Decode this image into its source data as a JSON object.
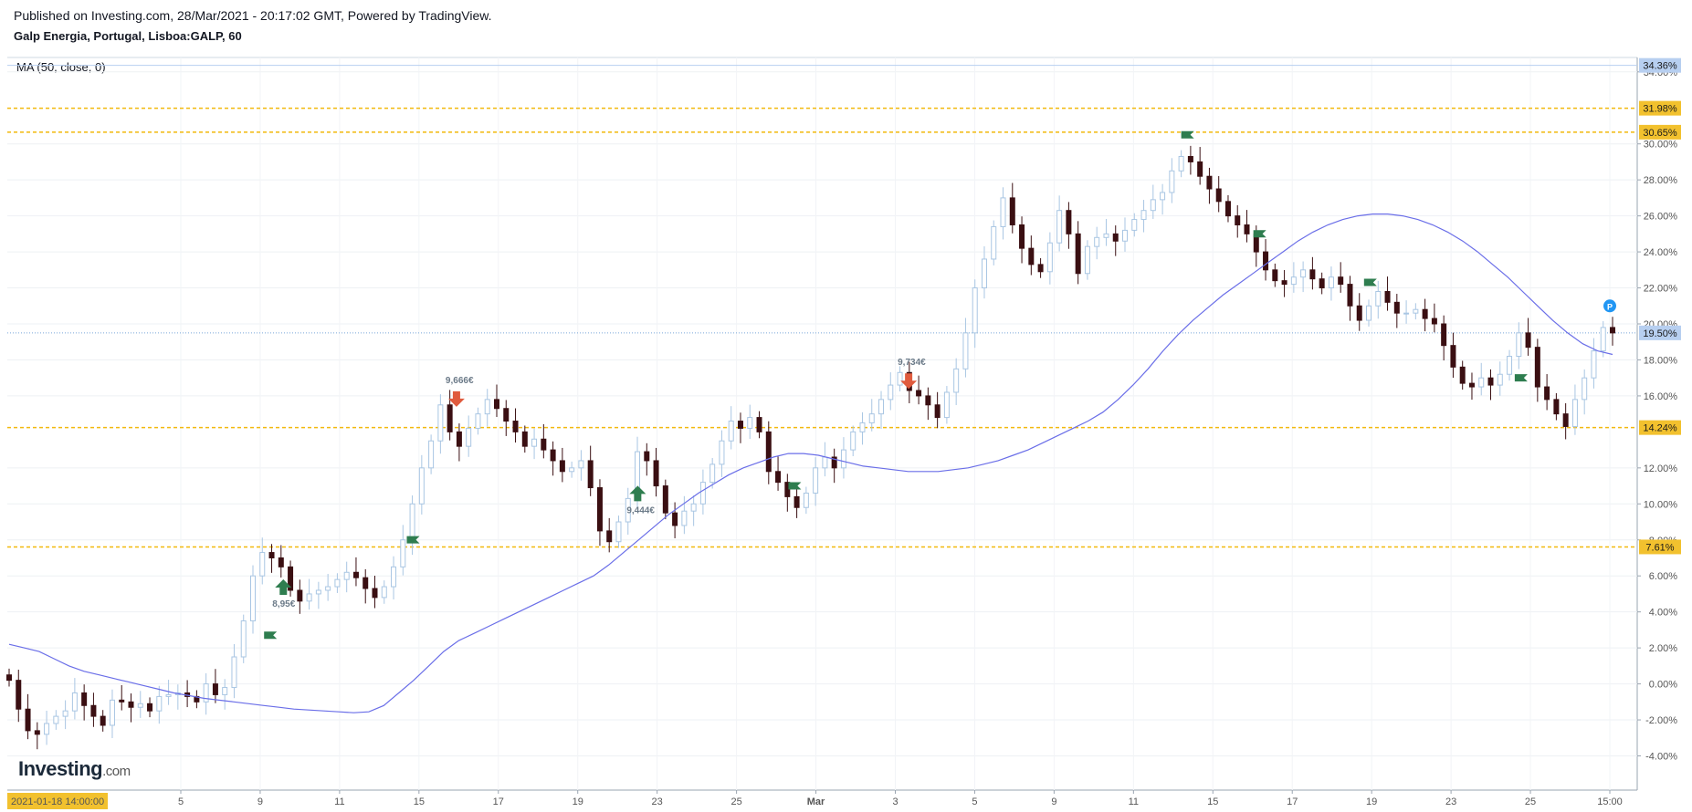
{
  "header": {
    "published": "Published on Investing.com, 28/Mar/2021 - 20:17:02 GMT, Powered by TradingView.",
    "symbol": "Galp Energia, Portugal, Lisboa:GALP, 60",
    "ma_legend": "MA (50, close, 0)"
  },
  "logo": {
    "main": "Investing",
    "suffix": ".com"
  },
  "colors": {
    "candle_up": "#a9c6e3",
    "candle_down": "#3a0f12",
    "ma_line": "#6a6ee8",
    "level_line": "#f2b90d",
    "level_label_bg": "#f2c12e",
    "current_label_bg": "#b7cff0",
    "flag": "#2e7d4f",
    "arrow_up": "#2e7d4f",
    "arrow_down": "#e05b3e",
    "p_badge": "#2196f3"
  },
  "chart_data": {
    "type": "line",
    "title": "Galp Energia, Portugal, Lisboa:GALP, 60",
    "ylabel": "",
    "xlabel": "",
    "y_unit": "%",
    "ylim": [
      -5.9,
      34.8
    ],
    "y_ticks": [
      "34.00%",
      "30.00%",
      "28.00%",
      "26.00%",
      "24.00%",
      "22.00%",
      "20.00%",
      "18.00%",
      "16.00%",
      "12.00%",
      "10.00%",
      "8.00%",
      "6.00%",
      "4.00%",
      "2.00%",
      "0.00%",
      "-2.00%",
      "-4.00%"
    ],
    "x_ticks": [
      "5",
      "9",
      "11",
      "15",
      "17",
      "19",
      "23",
      "25",
      "Mar",
      "3",
      "5",
      "9",
      "11",
      "15",
      "17",
      "19",
      "23",
      "25",
      "15:00"
    ],
    "x_start_label": "2021-01-18 14:00:00",
    "price_series_close": [
      0.2,
      -1.4,
      -2.6,
      -2.8,
      -2.2,
      -1.8,
      -1.5,
      -0.5,
      -1.2,
      -1.8,
      -2.3,
      -0.9,
      -1.0,
      -1.3,
      -1.1,
      -1.5,
      -0.7,
      -0.6,
      -0.5,
      -0.7,
      -1.0,
      0.0,
      -0.6,
      -0.2,
      1.5,
      3.5,
      6.0,
      7.3,
      7.0,
      6.5,
      5.2,
      4.6,
      5.0,
      5.2,
      5.4,
      5.8,
      6.2,
      5.9,
      5.3,
      4.8,
      5.4,
      6.5,
      8.0,
      10.0,
      12.0,
      13.5,
      15.5,
      14.0,
      13.2,
      14.2,
      15.0,
      15.8,
      15.3,
      14.6,
      14.0,
      13.2,
      13.6,
      13.0,
      12.4,
      11.8,
      12.0,
      12.4,
      10.9,
      8.5,
      7.9,
      9.0,
      10.3,
      12.9,
      12.4,
      11.0,
      9.5,
      8.8,
      9.6,
      10.0,
      11.2,
      12.2,
      13.5,
      14.6,
      14.2,
      14.8,
      14.0,
      11.8,
      11.2,
      10.4,
      9.8,
      10.6,
      12.0,
      12.6,
      12.0,
      13.0,
      14.0,
      14.5,
      15.0,
      15.8,
      16.6,
      17.3,
      16.3,
      16.0,
      15.5,
      14.8,
      16.2,
      17.5,
      19.5,
      22.0,
      23.6,
      25.4,
      27.0,
      25.5,
      24.2,
      23.3,
      22.9,
      24.5,
      26.3,
      25.0,
      22.8,
      24.3,
      24.8,
      25.0,
      24.6,
      25.2,
      25.8,
      26.3,
      26.9,
      27.3,
      28.5,
      29.3,
      29.0,
      28.2,
      27.5,
      26.8,
      26.0,
      25.5,
      25.0,
      24.0,
      23.0,
      22.4,
      22.2,
      22.6,
      23.0,
      22.5,
      22.0,
      22.6,
      22.2,
      21.0,
      20.2,
      21.0,
      21.8,
      21.2,
      20.6,
      20.6,
      20.8,
      20.3,
      20.0,
      18.8,
      17.6,
      16.7,
      16.5,
      17.0,
      16.6,
      17.2,
      18.2,
      19.5,
      18.7,
      16.5,
      15.8,
      15.0,
      14.3,
      15.8,
      17.0,
      18.5,
      19.8,
      19.5
    ],
    "ma50": [
      2.2,
      2.0,
      1.8,
      1.4,
      1.0,
      0.7,
      0.5,
      0.3,
      0.1,
      -0.1,
      -0.3,
      -0.5,
      -0.65,
      -0.8,
      -0.9,
      -1.0,
      -1.1,
      -1.2,
      -1.3,
      -1.4,
      -1.45,
      -1.5,
      -1.55,
      -1.6,
      -1.55,
      -1.2,
      -0.5,
      0.2,
      1.0,
      1.8,
      2.4,
      2.8,
      3.2,
      3.6,
      4.0,
      4.4,
      4.8,
      5.2,
      5.6,
      6.0,
      6.6,
      7.3,
      8.0,
      8.7,
      9.4,
      10.0,
      10.6,
      11.1,
      11.6,
      12.0,
      12.3,
      12.6,
      12.8,
      12.8,
      12.7,
      12.5,
      12.3,
      12.1,
      12.0,
      11.9,
      11.8,
      11.8,
      11.8,
      11.9,
      12.0,
      12.2,
      12.4,
      12.7,
      13.0,
      13.4,
      13.8,
      14.2,
      14.6,
      15.1,
      15.8,
      16.6,
      17.5,
      18.5,
      19.4,
      20.2,
      20.9,
      21.6,
      22.2,
      22.8,
      23.4,
      24.0,
      24.6,
      25.1,
      25.5,
      25.8,
      26.0,
      26.1,
      26.1,
      26.0,
      25.8,
      25.5,
      25.1,
      24.6,
      24.0,
      23.3,
      22.6,
      21.8,
      21.0,
      20.2,
      19.5,
      18.9,
      18.5,
      18.3
    ],
    "levels": [
      {
        "value": 31.98,
        "label": "31.98%"
      },
      {
        "value": 30.65,
        "label": "30.65%"
      },
      {
        "value": 14.24,
        "label": "14.24%"
      },
      {
        "value": 7.61,
        "label": "7.61%"
      }
    ],
    "current": {
      "value": 19.5,
      "label": "19.50%"
    },
    "top_label": {
      "value": 34.36,
      "label": "34.36%"
    },
    "annotations": [
      {
        "text": "8,95€",
        "kind": "arrow-up",
        "x_frac": 0.171,
        "y": 5.2
      },
      {
        "text": "9,666€",
        "kind": "arrow-down",
        "x_frac": 0.279,
        "y": 16.0
      },
      {
        "text": "9,444€",
        "kind": "arrow-up",
        "x_frac": 0.392,
        "y": 10.4
      },
      {
        "text": "9,734€",
        "kind": "arrow-down",
        "x_frac": 0.561,
        "y": 17.0
      }
    ]
  }
}
